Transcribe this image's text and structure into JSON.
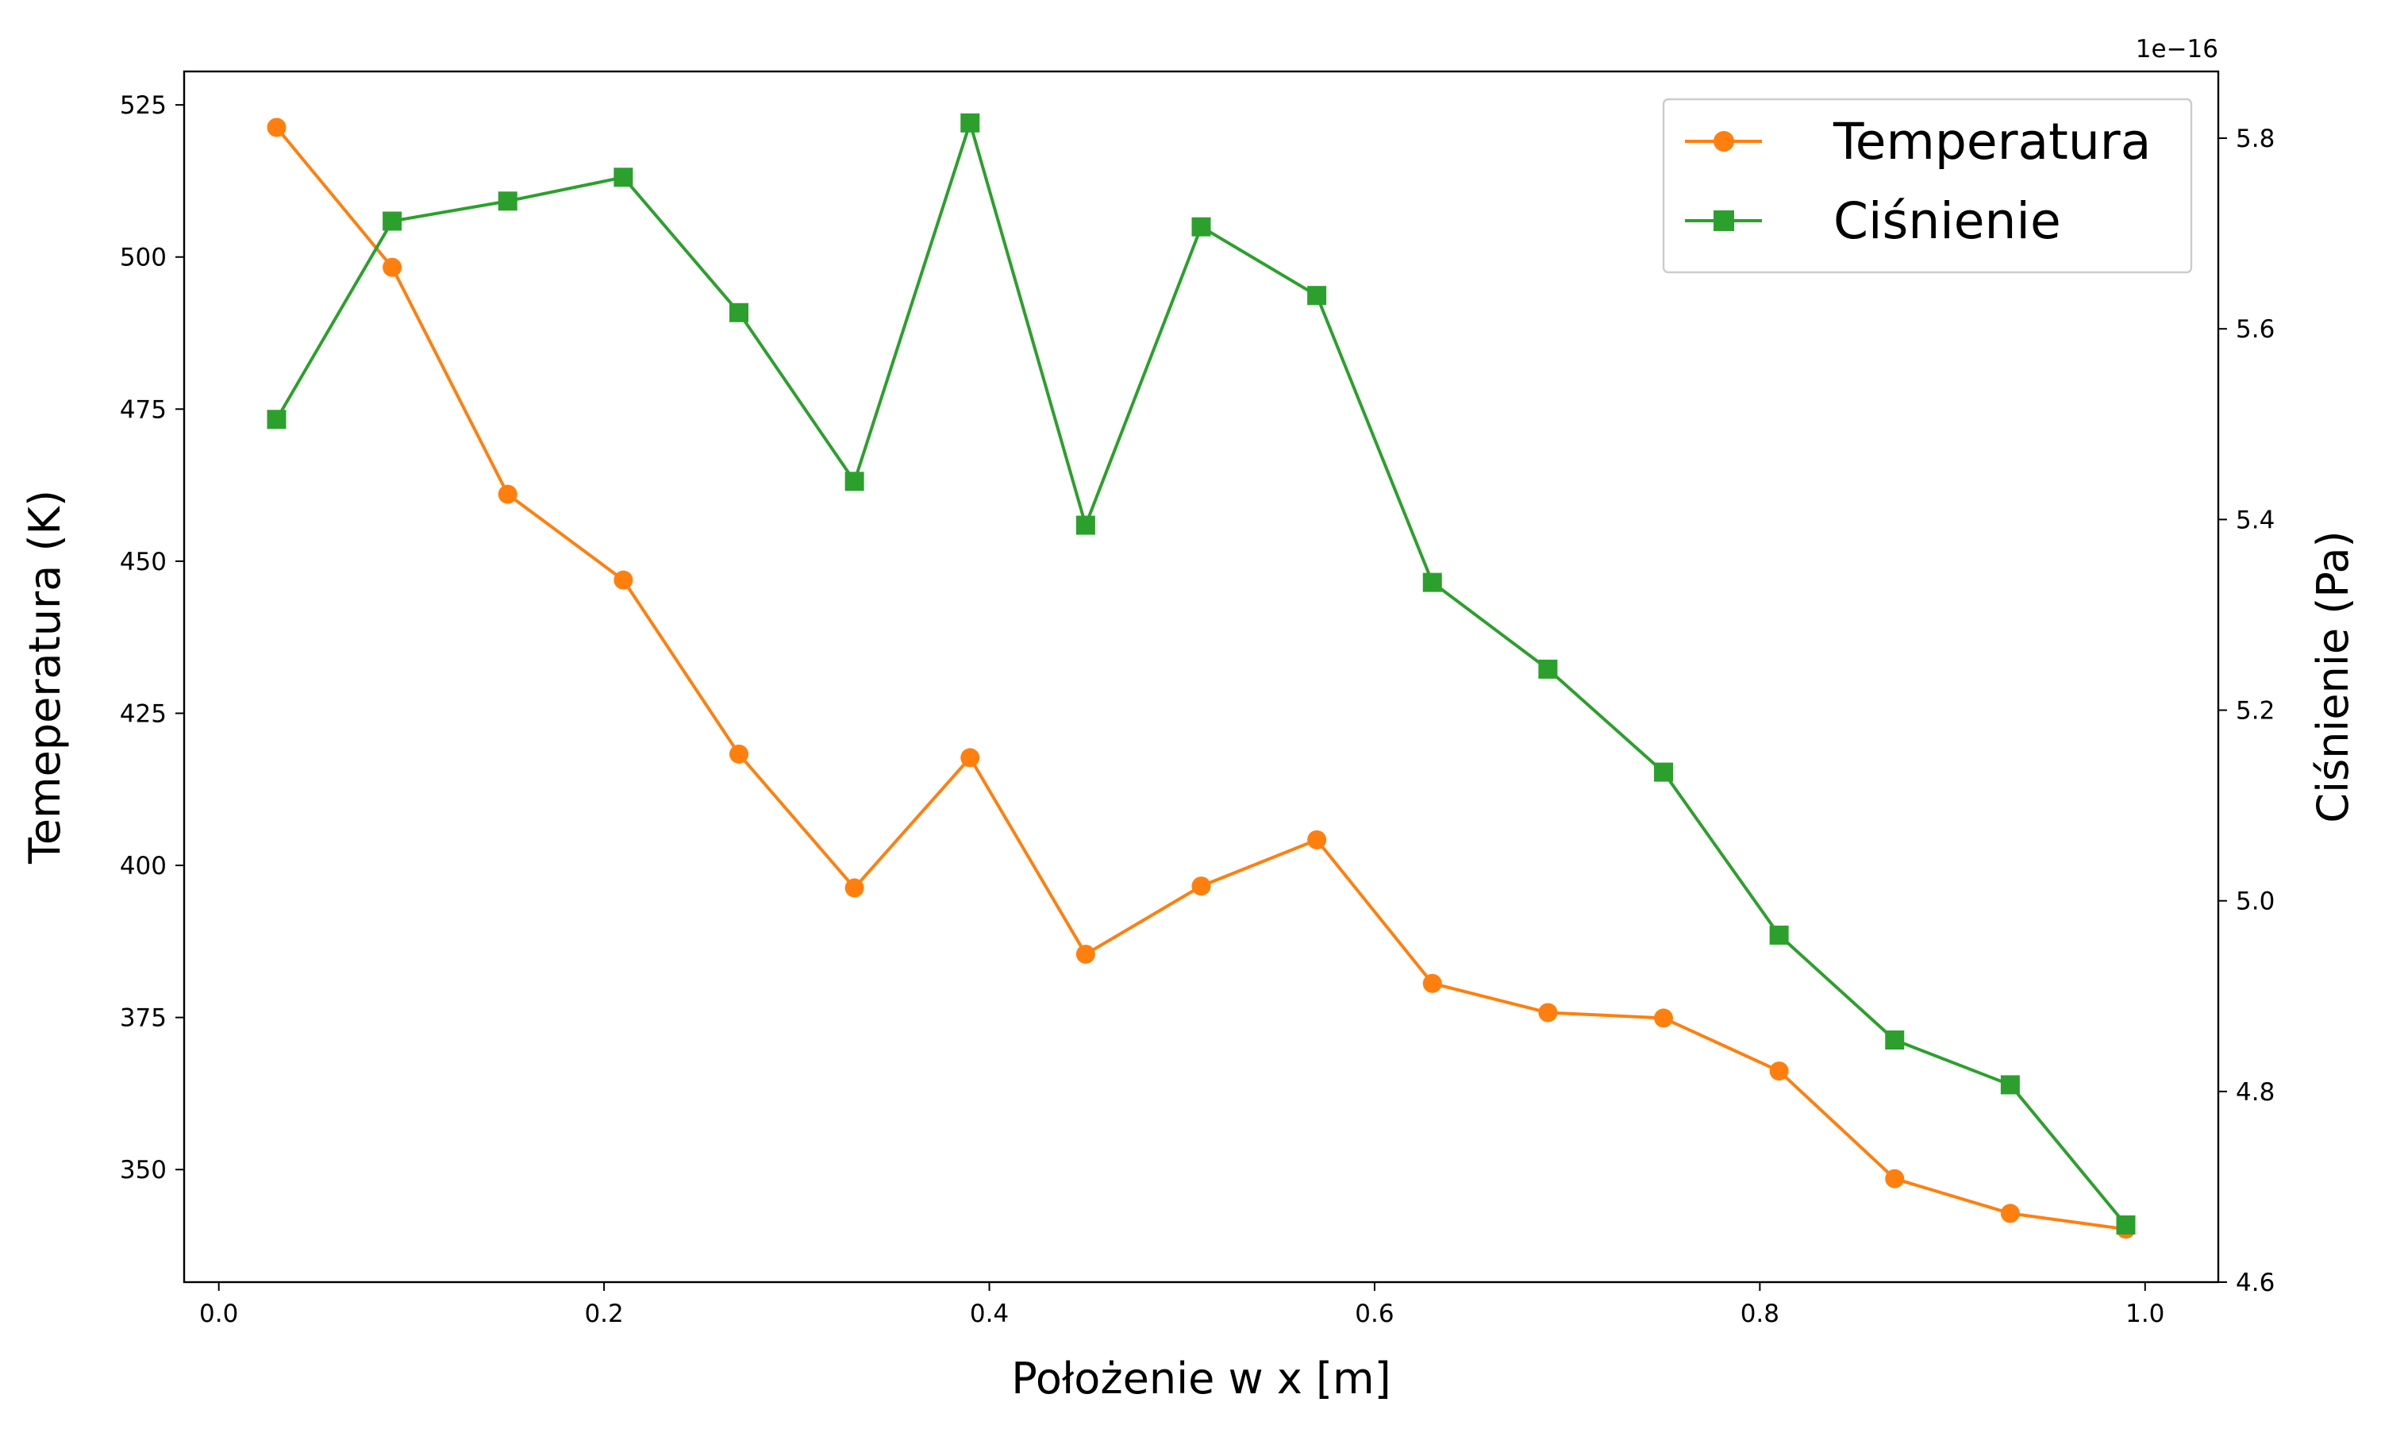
{
  "chart_data": {
    "type": "line",
    "xlabel": "Położenie w x [m]",
    "ylabel": "Temeperatura (K)",
    "y2label": "Ciśnienie (Pa)",
    "y2_offset_text": "1e−16",
    "x": [
      0.03,
      0.09,
      0.15,
      0.21,
      0.27,
      0.33,
      0.39,
      0.45,
      0.51,
      0.57,
      0.63,
      0.69,
      0.75,
      0.81,
      0.87,
      0.93,
      0.99
    ],
    "xlim": [
      -0.018,
      1.038
    ],
    "x_ticks": [
      0.0,
      0.2,
      0.4,
      0.6,
      0.8,
      1.0
    ],
    "x_tick_labels": [
      "0.0",
      "0.2",
      "0.4",
      "0.6",
      "0.8",
      "1.0"
    ],
    "ylim": [
      331.5,
      530.5
    ],
    "y_ticks": [
      350,
      375,
      400,
      425,
      450,
      475,
      500,
      525
    ],
    "y_tick_labels": [
      "350",
      "375",
      "400",
      "425",
      "450",
      "475",
      "500",
      "525"
    ],
    "y2lim": [
      4.6,
      5.87
    ],
    "y2_ticks": [
      4.6,
      4.8,
      5.0,
      5.2,
      5.4,
      5.6,
      5.8
    ],
    "y2_tick_labels": [
      "4.6",
      "4.8",
      "5.0",
      "5.2",
      "5.4",
      "5.6",
      "5.8"
    ],
    "legend_position": "top-right",
    "grid": false,
    "series": [
      {
        "name": "Temperatura",
        "axis": "left",
        "color": "#ff7f0e",
        "marker": "circle",
        "values": [
          521.3,
          498.3,
          461.0,
          446.9,
          418.3,
          396.3,
          417.7,
          385.4,
          396.6,
          404.2,
          380.6,
          375.8,
          374.9,
          366.2,
          348.5,
          342.8,
          340.2
        ]
      },
      {
        "name": "Ciśnienie",
        "axis": "right",
        "color": "#2ca02c",
        "marker": "square",
        "values": [
          5.505,
          5.713,
          5.734,
          5.759,
          5.617,
          5.44,
          5.816,
          5.394,
          5.707,
          5.635,
          5.334,
          5.243,
          5.135,
          4.964,
          4.854,
          4.807,
          4.66
        ]
      }
    ]
  }
}
